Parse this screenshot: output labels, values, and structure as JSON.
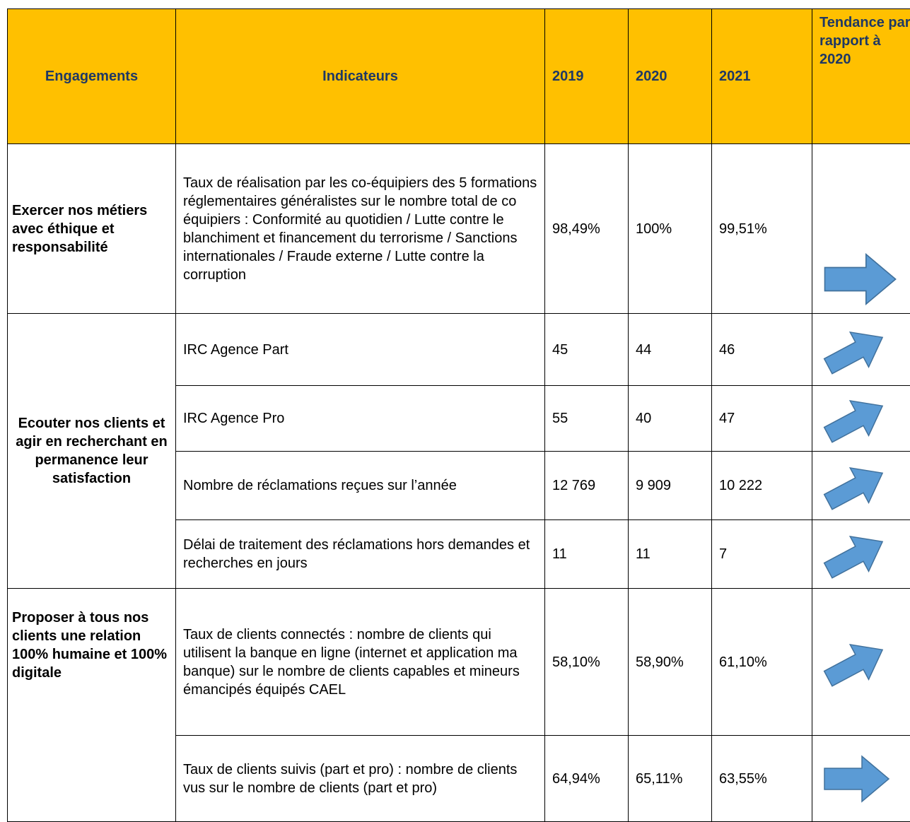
{
  "table": {
    "header": [
      "Engagements",
      "Indicateurs",
      "2019",
      "2020",
      "2021",
      "Tendance par rapport à 2020"
    ],
    "groups": [
      {
        "engagement": "Exercer nos métiers avec éthique et responsabilité",
        "rows": [
          {
            "indicator": "Taux de réalisation par les co-équipiers des 5 formations réglementaires généralistes sur le nombre total de co équipiers : Conformité au quotidien / Lutte contre le blanchiment et financement du terrorisme / Sanctions internationales / Fraude externe / Lutte contre la corruption",
            "values": [
              "98,49%",
              "100%",
              "99,51%"
            ]
          }
        ]
      },
      {
        "engagement": "Ecouter nos clients et agir en recherchant en permanence leur satisfaction",
        "rows": [
          {
            "indicator": "IRC Agence Part",
            "values": [
              "45",
              "44",
              "46"
            ]
          },
          {
            "indicator": "IRC Agence Pro",
            "values": [
              "55",
              "40",
              "47"
            ]
          },
          {
            "indicator": "Nombre de réclamations reçues sur l’année",
            "values": [
              "12 769",
              "9 909",
              "10 222"
            ]
          },
          {
            "indicator": "Délai de traitement des réclamations hors demandes et recherches en jours",
            "values": [
              "11",
              "11",
              "7"
            ]
          }
        ]
      },
      {
        "engagement": "Proposer à tous nos clients une relation 100% humaine et 100% digitale",
        "rows": [
          {
            "indicator": "Taux de clients connectés : nombre de clients qui utilisent la banque en ligne (internet et application ma banque) sur le nombre de clients capables et mineurs émancipés équipés CAEL",
            "values": [
              "58,10%",
              "58,90%",
              "61,10%"
            ]
          },
          {
            "indicator": "Taux de clients suivis (part et pro) : nombre de clients vus sur le nombre de clients (part et pro)",
            "values": [
              "64,94%",
              "65,11%",
              "63,55%"
            ]
          }
        ]
      }
    ]
  }
}
